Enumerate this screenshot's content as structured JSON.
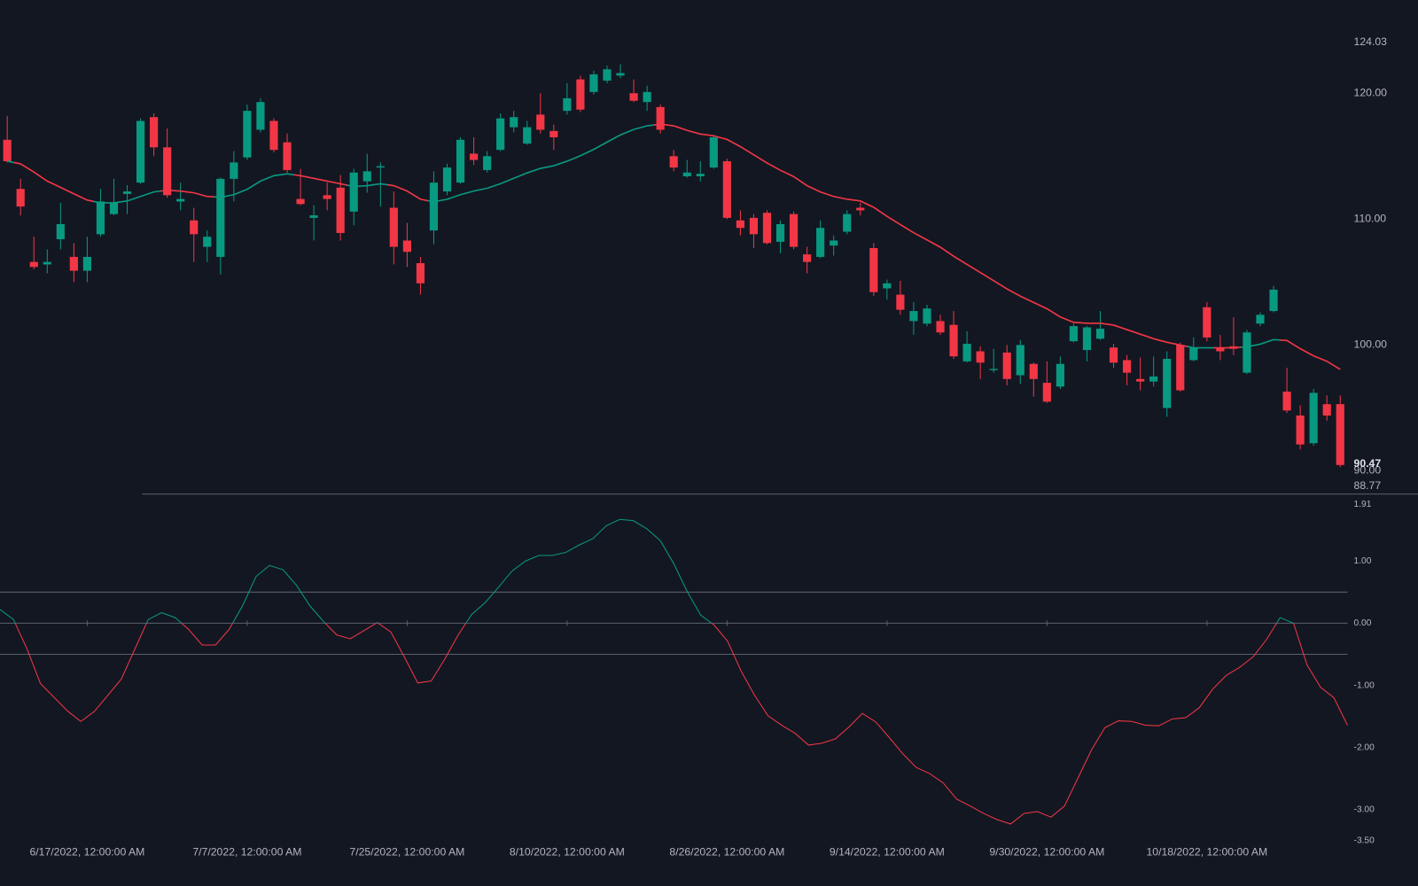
{
  "chart_data": [
    {
      "type": "candlestick",
      "categories": [
        null,
        null,
        null,
        null,
        null,
        null,
        "6/17/2022, 12:00:00 AM",
        null,
        null,
        null,
        null,
        null,
        null,
        null,
        null,
        null,
        null,
        null,
        "7/7/2022, 12:00:00 AM",
        null,
        null,
        null,
        null,
        null,
        null,
        null,
        null,
        null,
        null,
        null,
        "7/25/2022, 12:00:00 AM",
        null,
        null,
        null,
        null,
        null,
        null,
        null,
        null,
        null,
        null,
        null,
        "8/10/2022, 12:00:00 AM",
        null,
        null,
        null,
        null,
        null,
        null,
        null,
        null,
        null,
        null,
        null,
        "8/26/2022, 12:00:00 AM",
        null,
        null,
        null,
        null,
        null,
        null,
        null,
        null,
        null,
        null,
        null,
        "9/14/2022, 12:00:00 AM",
        null,
        null,
        null,
        null,
        null,
        null,
        null,
        null,
        null,
        null,
        null,
        "9/30/2022, 12:00:00 AM",
        null,
        null,
        null,
        null,
        null,
        null,
        null,
        null,
        null,
        null,
        null,
        "10/18/2022, 12:00:00 AM",
        null,
        null,
        null,
        null,
        null,
        null,
        null,
        null,
        null,
        null
      ],
      "open": [
        116.3,
        112.4,
        106.6,
        106.4,
        108.4,
        107.0,
        105.9,
        108.8,
        110.4,
        112.0,
        112.9,
        118.1,
        115.7,
        111.4,
        109.9,
        107.8,
        107.0,
        113.2,
        114.9,
        117.1,
        117.8,
        116.1,
        111.6,
        110.1,
        111.9,
        112.5,
        110.6,
        113.0,
        114.1,
        110.9,
        108.3,
        106.5,
        109.1,
        112.2,
        112.9,
        115.2,
        113.9,
        115.5,
        117.3,
        116.0,
        118.3,
        117.0,
        118.6,
        121.1,
        120.1,
        121.0,
        121.4,
        120.0,
        119.3,
        118.9,
        115.0,
        113.4,
        113.4,
        114.1,
        114.6,
        109.9,
        110.1,
        110.5,
        108.2,
        110.4,
        107.2,
        107.0,
        107.9,
        109.0,
        110.9,
        107.7,
        104.5,
        104.0,
        101.9,
        101.7,
        101.9,
        101.6,
        98.7,
        99.5,
        98.0,
        99.4,
        97.6,
        98.5,
        97.0,
        96.7,
        100.3,
        99.6,
        100.5,
        99.8,
        98.8,
        97.3,
        97.1,
        95.0,
        100.0,
        98.8,
        103.0,
        99.8,
        99.9,
        97.8,
        101.7,
        102.7,
        96.3,
        94.4,
        92.2,
        95.3,
        95.3
      ],
      "high": [
        118.2,
        113.2,
        108.6,
        107.6,
        111.3,
        108.1,
        108.6,
        112.4,
        113.2,
        112.7,
        118.0,
        118.4,
        117.2,
        112.9,
        110.9,
        109.1,
        113.3,
        115.4,
        119.1,
        119.6,
        118.0,
        116.8,
        114.0,
        111.1,
        112.9,
        113.5,
        114.0,
        115.2,
        114.5,
        112.2,
        109.7,
        107.0,
        113.8,
        114.4,
        116.5,
        116.5,
        115.4,
        118.4,
        118.6,
        117.8,
        120.0,
        117.5,
        120.8,
        121.4,
        121.8,
        122.2,
        122.3,
        121.1,
        120.6,
        119.1,
        115.5,
        114.7,
        114.6,
        116.7,
        114.8,
        110.7,
        110.4,
        110.7,
        109.9,
        110.6,
        107.8,
        109.9,
        108.7,
        110.7,
        111.3,
        108.1,
        105.2,
        105.1,
        103.4,
        103.2,
        102.4,
        102.7,
        101.1,
        99.9,
        99.7,
        100.0,
        100.4,
        98.6,
        98.7,
        99.1,
        101.7,
        101.5,
        102.7,
        100.1,
        99.2,
        99.0,
        99.1,
        99.5,
        100.2,
        100.6,
        103.4,
        100.8,
        102.2,
        101.2,
        102.6,
        104.7,
        98.2,
        95.2,
        96.5,
        96.0,
        96.0
      ],
      "low": [
        114.5,
        110.3,
        106.0,
        105.7,
        107.6,
        105.0,
        105.0,
        108.6,
        110.3,
        110.4,
        112.8,
        115.0,
        111.7,
        110.7,
        106.6,
        106.6,
        105.6,
        111.4,
        114.7,
        116.9,
        115.3,
        113.7,
        111.1,
        108.3,
        110.7,
        108.3,
        109.5,
        112.1,
        111.0,
        106.4,
        106.2,
        104.0,
        108.0,
        111.9,
        112.8,
        114.3,
        113.7,
        115.4,
        116.9,
        115.9,
        116.8,
        115.5,
        118.3,
        118.5,
        119.9,
        120.8,
        121.2,
        119.3,
        118.6,
        116.8,
        113.8,
        113.3,
        113.0,
        114.0,
        110.0,
        108.7,
        107.7,
        108.0,
        107.3,
        107.6,
        105.7,
        106.9,
        107.1,
        108.8,
        110.3,
        103.9,
        103.6,
        102.4,
        100.8,
        101.5,
        100.8,
        98.9,
        98.6,
        97.3,
        97.8,
        96.8,
        96.9,
        95.9,
        95.4,
        96.5,
        100.2,
        98.7,
        100.4,
        98.2,
        96.8,
        96.4,
        96.7,
        94.3,
        96.3,
        98.7,
        100.3,
        98.8,
        99.2,
        97.7,
        101.5,
        102.6,
        94.6,
        91.7,
        92.0,
        94.0,
        90.3
      ],
      "close": [
        114.6,
        111.0,
        106.2,
        106.6,
        109.6,
        105.9,
        107.0,
        111.4,
        111.3,
        112.2,
        117.8,
        115.7,
        111.9,
        111.6,
        108.8,
        108.6,
        113.2,
        114.5,
        118.6,
        119.3,
        115.5,
        113.9,
        111.2,
        110.3,
        111.6,
        108.9,
        113.7,
        113.8,
        114.2,
        107.8,
        107.4,
        104.9,
        112.9,
        114.1,
        116.3,
        114.7,
        115.0,
        118.0,
        118.1,
        117.3,
        117.1,
        116.5,
        119.6,
        118.7,
        121.5,
        121.9,
        121.6,
        119.4,
        120.1,
        117.1,
        114.1,
        113.7,
        113.6,
        116.5,
        110.1,
        109.3,
        108.8,
        108.1,
        109.6,
        107.8,
        106.6,
        109.3,
        108.3,
        110.4,
        110.7,
        104.2,
        104.9,
        102.8,
        102.7,
        102.9,
        101.0,
        99.1,
        100.1,
        98.6,
        98.1,
        97.3,
        100.0,
        97.3,
        95.5,
        98.5,
        101.5,
        101.4,
        101.3,
        98.6,
        97.8,
        97.1,
        97.5,
        98.9,
        96.4,
        99.8,
        100.6,
        99.5,
        99.7,
        101.0,
        102.4,
        104.4,
        94.8,
        92.1,
        96.2,
        94.4,
        90.47
      ],
      "ma": [
        114.6,
        114.39,
        113.74,
        113.02,
        112.52,
        112.01,
        111.51,
        111.29,
        111.29,
        111.44,
        111.8,
        112.16,
        112.3,
        112.23,
        112.09,
        111.8,
        111.73,
        111.94,
        112.37,
        113.02,
        113.45,
        113.6,
        113.45,
        113.24,
        113.02,
        112.81,
        112.59,
        112.66,
        112.81,
        112.66,
        112.23,
        111.58,
        111.37,
        111.58,
        111.94,
        112.23,
        112.45,
        112.81,
        113.24,
        113.67,
        114.03,
        114.24,
        114.6,
        115.04,
        115.54,
        116.12,
        116.69,
        117.12,
        117.41,
        117.55,
        117.41,
        117.05,
        116.76,
        116.62,
        116.33,
        115.76,
        115.11,
        114.46,
        113.88,
        113.38,
        112.66,
        112.16,
        111.8,
        111.58,
        111.44,
        110.94,
        110.22,
        109.57,
        108.92,
        108.35,
        107.77,
        107.05,
        106.4,
        105.76,
        105.11,
        104.46,
        103.88,
        103.38,
        102.88,
        102.23,
        101.8,
        101.73,
        101.73,
        101.58,
        101.22,
        100.86,
        100.5,
        100.22,
        100,
        99.78,
        99.78,
        99.78,
        99.78,
        99.86,
        100.07,
        100.43,
        100.36,
        99.71,
        99.14,
        98.71,
        98.06
      ],
      "up_color": "#089981",
      "down_color": "#f23645",
      "ylim": [
        88.77,
        124.03
      ],
      "yticks": [
        88.77,
        {
          "value": 90,
          "label": "90.00"
        },
        {
          "value": 100,
          "label": "100.00"
        },
        {
          "value": 110,
          "label": "110.00"
        },
        {
          "value": 120,
          "label": "120.00"
        },
        124.03
      ]
    },
    {
      "type": "line",
      "values": [
        0.22,
        0.06,
        -0.41,
        -0.97,
        -1.19,
        -1.41,
        -1.58,
        -1.42,
        -1.16,
        -0.9,
        -0.42,
        0.06,
        0.17,
        0.09,
        -0.1,
        -0.35,
        -0.35,
        -0.1,
        0.28,
        0.75,
        0.93,
        0.86,
        0.61,
        0.28,
        0.03,
        -0.19,
        -0.25,
        -0.12,
        0.01,
        -0.14,
        -0.54,
        -0.96,
        -0.93,
        -0.58,
        -0.19,
        0.14,
        0.33,
        0.58,
        0.84,
        1.0,
        1.09,
        1.09,
        1.14,
        1.26,
        1.36,
        1.57,
        1.67,
        1.65,
        1.52,
        1.33,
        0.96,
        0.51,
        0.13,
        -0.03,
        -0.29,
        -0.77,
        -1.16,
        -1.49,
        -1.64,
        -1.77,
        -1.96,
        -1.93,
        -1.86,
        -1.67,
        -1.45,
        -1.59,
        -1.84,
        -2.1,
        -2.32,
        -2.42,
        -2.57,
        -2.83,
        -2.94,
        -3.06,
        -3.16,
        -3.23,
        -3.06,
        -3.03,
        -3.12,
        -2.94,
        -2.49,
        -2.04,
        -1.68,
        -1.57,
        -1.58,
        -1.64,
        -1.65,
        -1.54,
        -1.52,
        -1.36,
        -1.06,
        -0.84,
        -0.71,
        -0.54,
        -0.26,
        0.09,
        0.0,
        -0.67,
        -1.03,
        -1.2,
        -1.64
      ],
      "up_color": "#089981",
      "down_color": "#f23645",
      "levels": [
        0.5,
        0,
        -0.5
      ],
      "ylim": [
        -3.5,
        1.91
      ],
      "yticks": [
        1.91,
        {
          "value": 1,
          "label": "1.00"
        },
        {
          "value": 0,
          "label": "0.00"
        },
        {
          "value": -1,
          "label": "-1.00"
        },
        {
          "value": -2,
          "label": "-2.00"
        },
        {
          "value": -3,
          "label": "-3.00"
        },
        {
          "value": -3.5,
          "label": "-3.50"
        }
      ]
    }
  ]
}
